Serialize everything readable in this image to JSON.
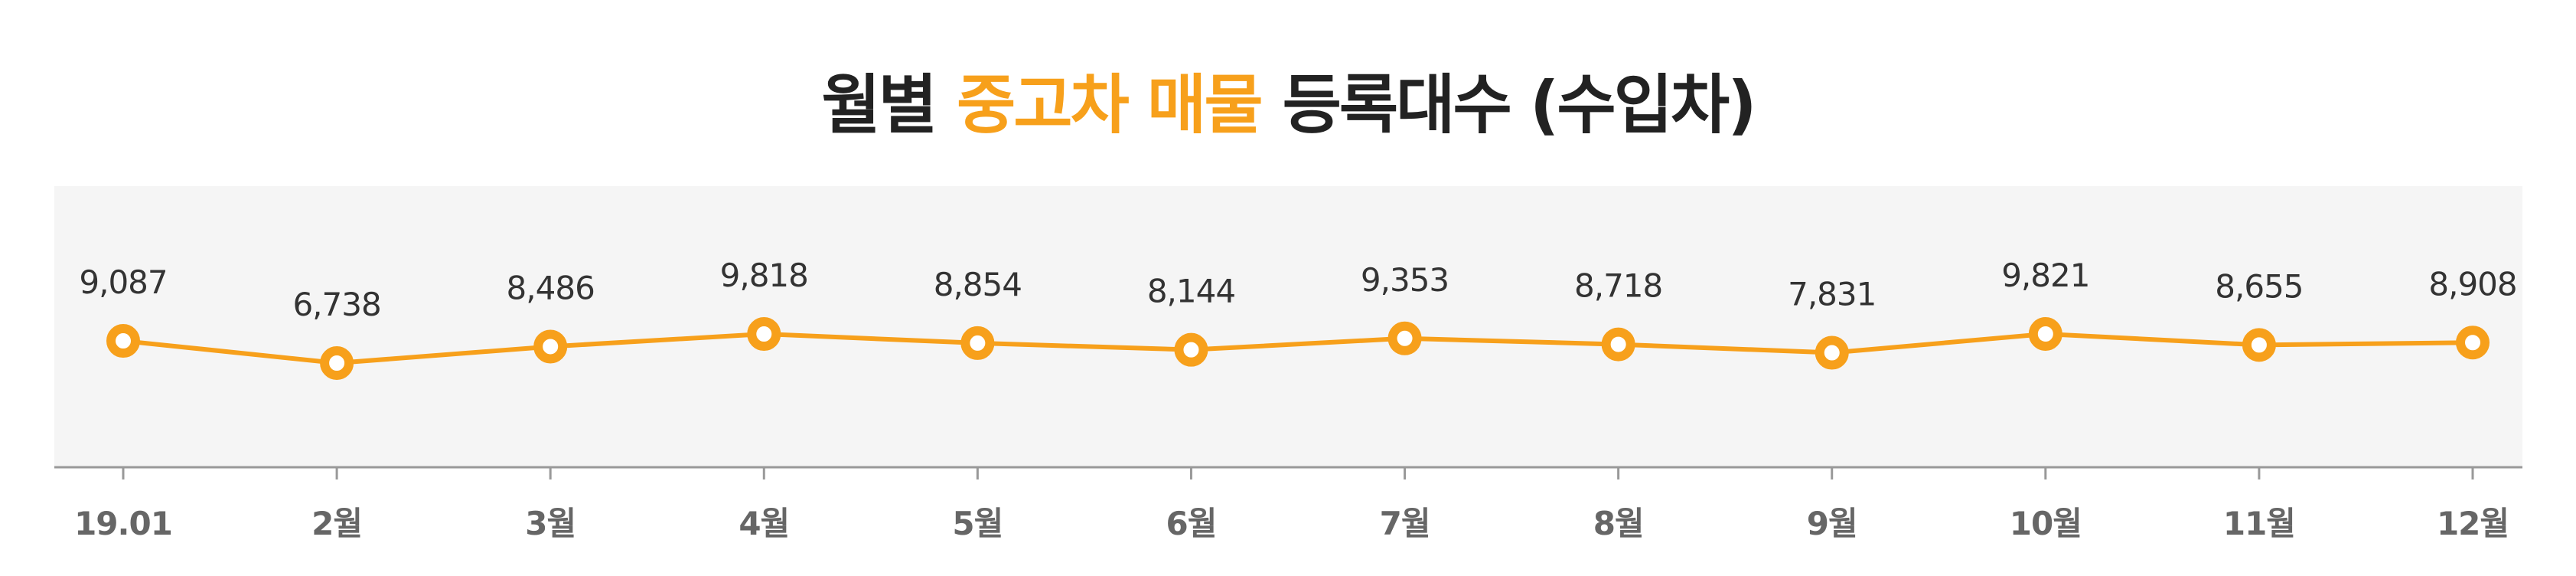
{
  "chart_data": {
    "type": "line",
    "title_parts": [
      "월별",
      "중고차 매물",
      "등록대수 (수입차)"
    ],
    "title_highlight_color": "#f7a01b",
    "categories": [
      "19.01",
      "2월",
      "3월",
      "4월",
      "5월",
      "6월",
      "7월",
      "8월",
      "9월",
      "10월",
      "11월",
      "12월"
    ],
    "values": [
      9087,
      6738,
      8486,
      9818,
      8854,
      8144,
      9353,
      8718,
      7831,
      9821,
      8655,
      8908
    ],
    "value_labels": [
      "9,087",
      "6,738",
      "8,486",
      "9,818",
      "8,854",
      "8,144",
      "9,353",
      "8,718",
      "7,831",
      "9,821",
      "8,655",
      "8,908"
    ],
    "color": "#f7a01b"
  }
}
